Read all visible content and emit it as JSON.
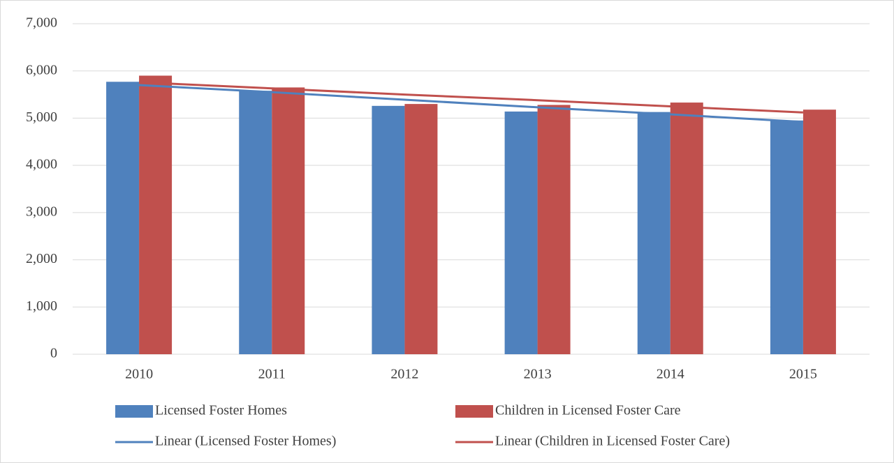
{
  "chart_data": {
    "type": "bar",
    "categories": [
      "2010",
      "2011",
      "2012",
      "2013",
      "2014",
      "2015"
    ],
    "series": [
      {
        "name": "Licensed Foster Homes",
        "color": "#4f81bd",
        "type": "bar",
        "values": [
          5770,
          5580,
          5260,
          5140,
          5130,
          4950
        ]
      },
      {
        "name": "Children in Licensed Foster Care",
        "color": "#c0504d",
        "type": "bar",
        "values": [
          5900,
          5650,
          5300,
          5280,
          5330,
          5180
        ]
      },
      {
        "name": "Linear (Licensed Foster Homes)",
        "color": "#4f81bd",
        "type": "line",
        "values": [
          5700,
          5550,
          5390,
          5230,
          5080,
          4920
        ]
      },
      {
        "name": "Linear (Children in Licensed Foster Care)",
        "color": "#c0504d",
        "type": "line",
        "values": [
          5760,
          5630,
          5500,
          5380,
          5250,
          5120
        ]
      }
    ],
    "ylim": [
      0,
      7000
    ],
    "yticks": [
      0,
      {
        "value": 1000,
        "label": "1,000"
      },
      {
        "value": 2000,
        "label": "2,000"
      },
      {
        "value": 3000,
        "label": "3,000"
      },
      {
        "value": 4000,
        "label": "4,000"
      },
      {
        "value": 5000,
        "label": "5,000"
      },
      {
        "value": 6000,
        "label": "6,000"
      },
      {
        "value": 7000,
        "label": "7,000"
      }
    ],
    "grid": true,
    "legend": "bottom"
  }
}
